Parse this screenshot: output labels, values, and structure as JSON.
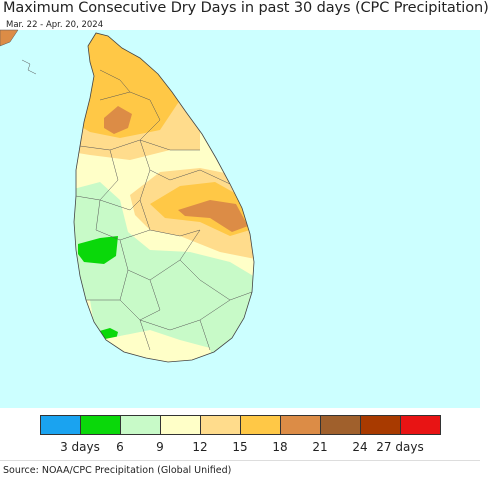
{
  "title": "Maximum Consecutive Dry Days in past 30 days (CPC Precipitation)",
  "subtitle": "Mar. 22 - Apr. 20, 2024",
  "source": "Source: NOAA/CPC Precipitation (Global Unified)",
  "legend": {
    "colors": [
      "#1aa3f0",
      "#0ad80a",
      "#c8fac8",
      "#ffffc8",
      "#ffdc8c",
      "#ffc846",
      "#dc8c46",
      "#a0602c",
      "#a83a00",
      "#e81414"
    ],
    "tick_labels": [
      "3 days",
      "6",
      "9",
      "12",
      "15",
      "18",
      "21",
      "24",
      "27 days"
    ]
  },
  "map": {
    "ocean_color": "#ccffff",
    "land_base_color": "#ffffc8",
    "region": "Sri Lanka"
  }
}
